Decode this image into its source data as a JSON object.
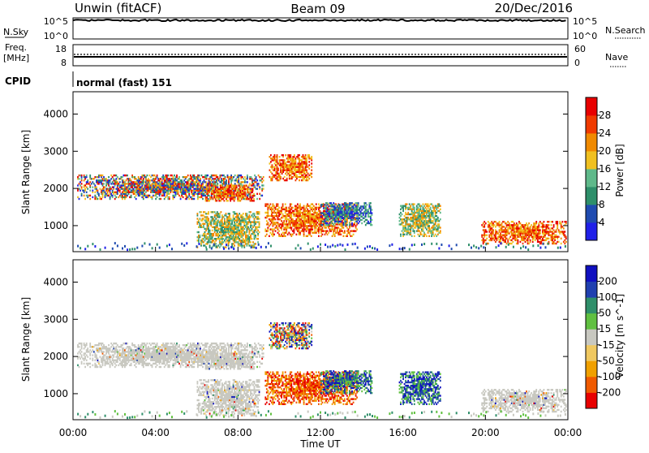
{
  "header": {
    "left": "Unwin (fitACF)",
    "center": "Beam 09",
    "right": "20/Dec/2016"
  },
  "nsky": {
    "label": "N.Sky",
    "ticks_left": [
      "10^5",
      "10^0"
    ],
    "ticks_right": [
      "10^5",
      "10^0"
    ],
    "right_label": "N.Search"
  },
  "freq": {
    "label_line1": "Freq.",
    "label_line2": "[MHz]",
    "ticks_left": [
      "18",
      "8"
    ],
    "ticks_right": [
      "60",
      "0"
    ],
    "right_label": "Nave",
    "value_mhz": 11,
    "nave": 26
  },
  "cpid": {
    "label": "CPID",
    "text": "normal (fast) 151"
  },
  "colors": {
    "power": [
      "#2020e8",
      "#1f4bb0",
      "#2e8f6a",
      "#5fb98a",
      "#f0c020",
      "#f08a00",
      "#f03a00",
      "#e80000"
    ],
    "velocity": [
      "#e80000",
      "#f05a00",
      "#f0a000",
      "#f0c860",
      "#c8c8c0",
      "#60c040",
      "#2f8f6a",
      "#2040b0",
      "#1010c0"
    ],
    "ground_scatter": "#c8c8c0"
  },
  "chart_data": [
    {
      "type": "heatmap",
      "title": "",
      "ylabel": "Slant Range [km]",
      "xlabel": "",
      "ylim": [
        300,
        4600
      ],
      "yticks": [
        "4000",
        "3000",
        "2000",
        "1000"
      ],
      "colorbar": {
        "label": "Power [dB]",
        "ticks": [
          "28",
          "24",
          "20",
          "16",
          "12",
          "8",
          "4"
        ],
        "range": [
          0,
          30
        ]
      }
    },
    {
      "type": "heatmap",
      "title": "",
      "ylabel": "Slant Range [km]",
      "xlabel": "Time UT",
      "ylim": [
        300,
        4600
      ],
      "yticks": [
        "4000",
        "3000",
        "2000",
        "1000"
      ],
      "xticks": [
        "00:00",
        "04:00",
        "08:00",
        "12:00",
        "16:00",
        "20:00",
        "00:00"
      ],
      "xlim_hours": [
        0,
        24
      ],
      "colorbar": {
        "label": "Velocity [m s^-1]",
        "ticks": [
          "200",
          "100",
          "50",
          "15",
          "-15",
          "-50",
          "-100",
          "-200"
        ],
        "range": [
          -300,
          300
        ]
      }
    }
  ],
  "echo_regions": [
    {
      "t0": 0.2,
      "t1": 9.2,
      "r0": 1700,
      "r1": 2350,
      "power": "mixed-high",
      "velocity": "ground"
    },
    {
      "t0": 6.4,
      "t1": 8.8,
      "r0": 1650,
      "r1": 2100,
      "power": "high",
      "velocity": "ground"
    },
    {
      "t0": 6.0,
      "t1": 9.0,
      "r0": 400,
      "r1": 1350,
      "power": "mid",
      "velocity": "ground"
    },
    {
      "t0": 9.3,
      "t1": 13.8,
      "r0": 700,
      "r1": 1600,
      "power": "high",
      "velocity": "negative"
    },
    {
      "t0": 12.0,
      "t1": 14.5,
      "r0": 1000,
      "r1": 1600,
      "power": "mid-low",
      "velocity": "positive"
    },
    {
      "t0": 15.8,
      "t1": 17.8,
      "r0": 700,
      "r1": 1600,
      "power": "mid",
      "velocity": "positive"
    },
    {
      "t0": 19.8,
      "t1": 23.9,
      "r0": 500,
      "r1": 1100,
      "power": "high",
      "velocity": "ground"
    },
    {
      "t0": 9.5,
      "t1": 11.6,
      "r0": 2200,
      "r1": 2900,
      "power": "high",
      "velocity": "mixed"
    }
  ]
}
